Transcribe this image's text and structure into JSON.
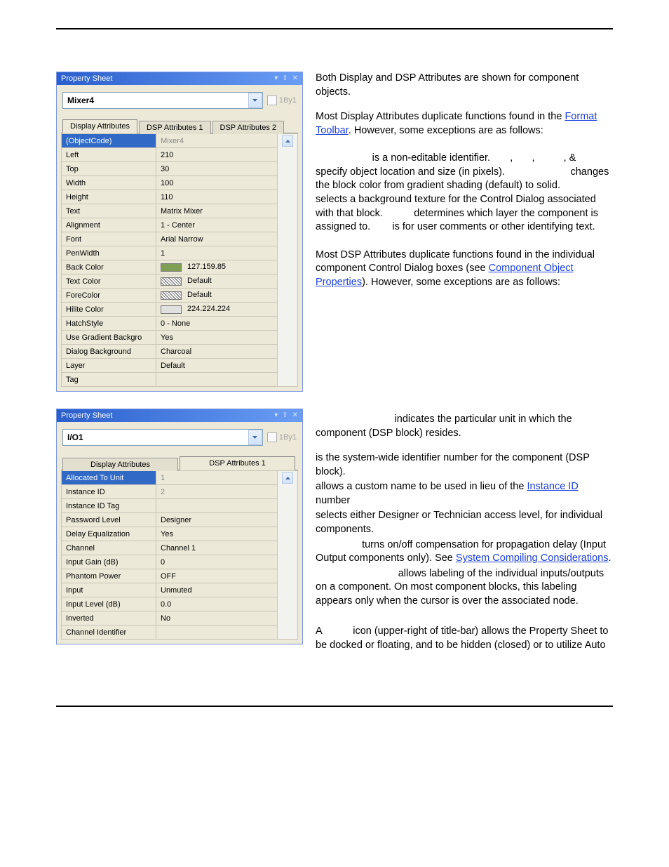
{
  "sheet1": {
    "title": "Property Sheet",
    "selector_value": "Mixer4",
    "lbl_1by1": "1By1",
    "tabs": [
      "Display Attributes",
      "DSP Attributes 1",
      "DSP Attributes 2"
    ],
    "rows": [
      {
        "k": "(ObjectCode)",
        "v": "Mixer4",
        "selected": true
      },
      {
        "k": "Left",
        "v": "210"
      },
      {
        "k": "Top",
        "v": "30"
      },
      {
        "k": "Width",
        "v": "100"
      },
      {
        "k": "Height",
        "v": "110"
      },
      {
        "k": "Text",
        "v": "Matrix Mixer"
      },
      {
        "k": "Alignment",
        "v": "1 - Center"
      },
      {
        "k": "Font",
        "v": "Arial Narrow"
      },
      {
        "k": "PenWidth",
        "v": "1"
      },
      {
        "k": "Back Color",
        "v": "127.159.85",
        "swatch": "#7f9f55"
      },
      {
        "k": "Text Color",
        "v": "Default",
        "hatch": true
      },
      {
        "k": "ForeColor",
        "v": "Default",
        "hatch": true
      },
      {
        "k": "Hilite Color",
        "v": "224.224.224",
        "swatch": "#e0e0e0"
      },
      {
        "k": "HatchStyle",
        "v": "0 - None"
      },
      {
        "k": "Use Gradient Backgro",
        "v": "Yes"
      },
      {
        "k": "Dialog Background",
        "v": "Charcoal"
      },
      {
        "k": "Layer",
        "v": "Default"
      },
      {
        "k": "Tag",
        "v": ""
      }
    ]
  },
  "sheet2": {
    "title": "Property Sheet",
    "selector_value": "I/O1",
    "lbl_1by1": "1By1",
    "tabs": [
      "Display Attributes",
      "DSP Attributes 1"
    ],
    "rows": [
      {
        "k": "Allocated To Unit",
        "v": "1",
        "selected": true
      },
      {
        "k": "Instance ID",
        "v": "2",
        "gray": true
      },
      {
        "k": "Instance ID Tag",
        "v": ""
      },
      {
        "k": "Password Level",
        "v": "Designer"
      },
      {
        "k": "Delay Equalization",
        "v": "Yes"
      },
      {
        "k": "Channel",
        "v": "Channel 1"
      },
      {
        "k": "Input Gain (dB)",
        "v": "0"
      },
      {
        "k": "Phantom Power",
        "v": "OFF"
      },
      {
        "k": "Input",
        "v": "Unmuted"
      },
      {
        "k": "Input Level (dB)",
        "v": "0.0"
      },
      {
        "k": "Inverted",
        "v": "No"
      },
      {
        "k": "Channel Identifier",
        "v": ""
      }
    ]
  },
  "text": {
    "p1": "Both Display and DSP Attributes are shown for component objects.",
    "p2a": "Most Display Attributes duplicate functions found in the ",
    "p2link": "Format Toolbar",
    "p2b": ". However, some exceptions are as follows:",
    "p3a": " is a non-editable identifier. ",
    "p3b": ", ",
    "p3c": ", ",
    "p3d": ", & ",
    "p3e": " specify object location and size (in pixels). ",
    "p3f": " changes the block color from gradient shading (default) to solid. ",
    "p3g": " selects a background texture for the Control Dialog associated with that block. ",
    "p3h": " determines which layer the component is assigned to. ",
    "p3i": " is for user comments or other identifying text.",
    "p4a": "Most DSP Attributes duplicate functions found in the individual component Control Dialog boxes (see ",
    "p4link": "Component Object Properties",
    "p4b": "). However, some exceptions are as follows:",
    "p5a": " indicates the particular unit in which the component (DSP block) resides.",
    "p5b": "is the system-wide identifier number for the component (DSP block).",
    "p5c": "allows a custom name to be used in lieu of the ",
    "p5link1": "Instance ID",
    "p5d": " number",
    "p5e": "selects either Designer or Technician access level, for individual components.",
    "p5f": " turns on/off compensation for propagation delay (Input Output components only). See ",
    "p5link2": "System Compiling Considerations",
    "p5g": ".",
    "p5h": " allows labeling of the individual inputs/outputs on a component. On most component blocks, this labeling appears only when the cursor is over the associated node.",
    "p6a": "A ",
    "p6b": " icon (upper-right of title-bar) allows the Property Sheet to be docked or floating, and to be hidden (closed) or to utilize Auto"
  }
}
